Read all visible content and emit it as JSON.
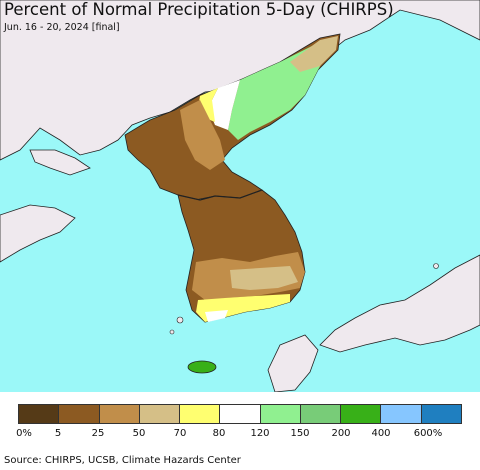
{
  "header": {
    "title": "Percent of Normal Precipitation 5-Day (CHIRPS)",
    "subtitle": "Jun. 16 - 20, 2024 [final]"
  },
  "colors": {
    "ocean": "#9bf8f8",
    "land_outside": "#efe9ee",
    "border": "#222222"
  },
  "legend": {
    "colors": [
      "#553a17",
      "#8c5a22",
      "#c18e4a",
      "#d5bf87",
      "#ffff70",
      "#ffffff",
      "#90f090",
      "#78cc78",
      "#38b018",
      "#86c6ff",
      "#1f7fc0"
    ],
    "labels": [
      "0%",
      "5",
      "25",
      "50",
      "70",
      "80",
      "120",
      "150",
      "200",
      "400",
      "600%"
    ]
  },
  "footer": {
    "source": "Source: CHIRPS, UCSB, Climate Hazards Center"
  }
}
